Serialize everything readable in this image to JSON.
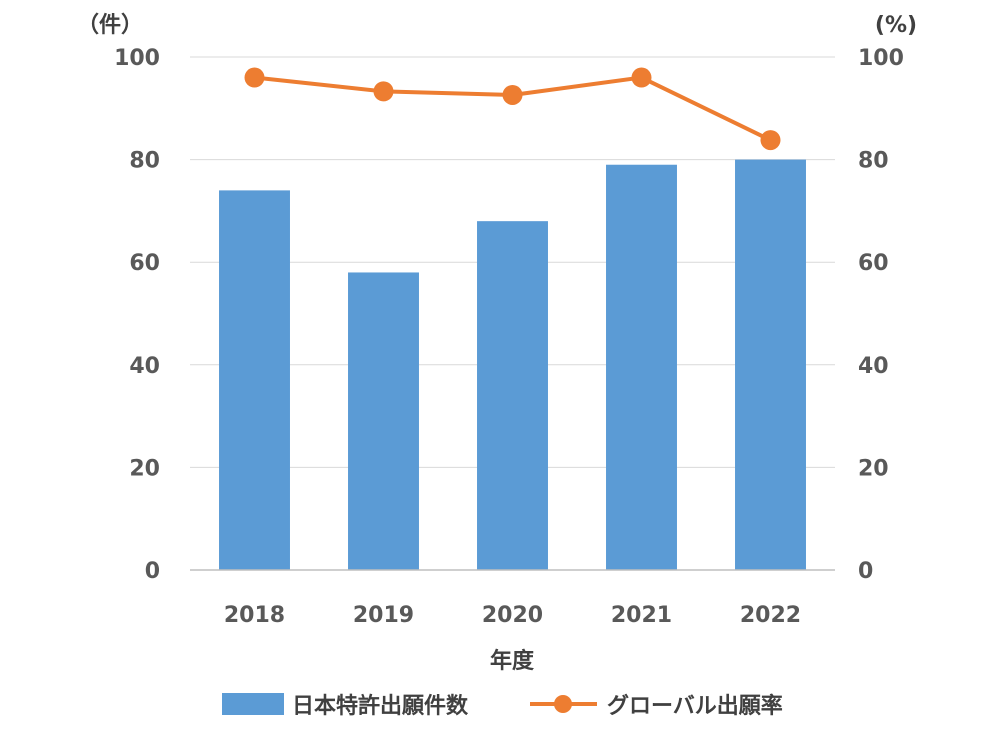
{
  "chart_data": {
    "type": "bar",
    "categories": [
      "2018",
      "2019",
      "2020",
      "2021",
      "2022"
    ],
    "series": [
      {
        "name": "日本特許出願件数",
        "type": "bar",
        "axis": "left",
        "values": [
          74,
          58,
          68,
          79,
          80
        ]
      },
      {
        "name": "グローバル出願率",
        "type": "line",
        "axis": "right",
        "values": [
          96,
          93.3,
          92.6,
          96,
          83.8
        ]
      }
    ],
    "xlabel": "年度",
    "y_left_unit": "（件）",
    "y_right_unit": "(%)",
    "ylim_left": [
      0,
      100
    ],
    "ylim_right": [
      0,
      100
    ],
    "yticks": [
      "0",
      "20",
      "40",
      "60",
      "80",
      "100"
    ],
    "grid": true,
    "legend_position": "bottom",
    "colors": {
      "bar": "#5b9bd5",
      "line": "#ed7d31"
    }
  }
}
